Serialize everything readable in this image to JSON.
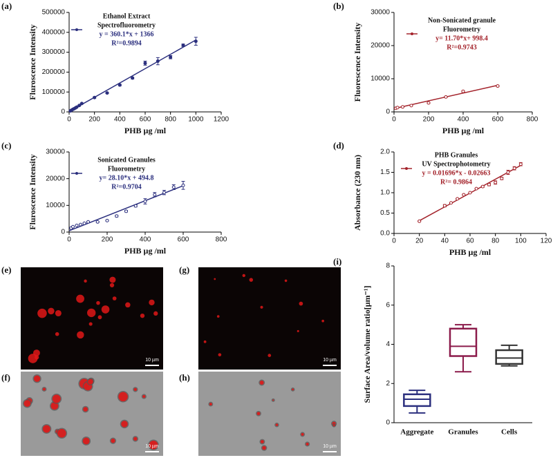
{
  "chart_data": [
    {
      "type": "scatter",
      "panel": "(a)",
      "xlabel": "PHB µg /ml",
      "ylabel": "Fluroscence Intensity",
      "xlim": [
        0,
        1200
      ],
      "xticks": [
        0,
        200,
        400,
        600,
        800,
        1000,
        1200
      ],
      "ylim": [
        0,
        500000
      ],
      "yticks": [
        0,
        100000,
        200000,
        300000,
        400000,
        500000
      ],
      "legend_lines": [
        "Ethanol Extract",
        "Spectrofluorometry",
        "y = 360.1*x + 1366",
        "R²=0.9894"
      ],
      "series": [
        {
          "color": "#2b2f7e",
          "marker": "filled",
          "x": [
            10,
            20,
            30,
            40,
            50,
            60,
            80,
            100,
            200,
            300,
            400,
            500,
            600,
            700,
            800,
            900,
            1000
          ],
          "values": [
            5000,
            9000,
            13000,
            16000,
            20000,
            24000,
            32000,
            42000,
            72000,
            95000,
            135000,
            170000,
            245000,
            255000,
            275000,
            335000,
            355000
          ],
          "errors": [
            1000,
            1000,
            1000,
            1000,
            1000,
            1000,
            2000,
            2000,
            3000,
            3000,
            4000,
            4000,
            10000,
            18000,
            8000,
            6000,
            20000
          ],
          "fit_x": [
            0,
            1000
          ],
          "fit_y": [
            1366,
            361466
          ]
        }
      ]
    },
    {
      "type": "scatter",
      "panel": "(b)",
      "xlabel": "PHB µg /ml",
      "ylabel": "Fluorescence Intensity",
      "xlim": [
        0,
        800
      ],
      "xticks": [
        0,
        200,
        400,
        600,
        800
      ],
      "ylim": [
        0,
        30000
      ],
      "yticks": [
        0,
        10000,
        20000,
        30000
      ],
      "legend_lines": [
        "Non-Sonicated granule",
        "Fluorometry",
        "y= 11.70*x+ 998.4",
        "R²=0.9743"
      ],
      "series": [
        {
          "color": "#a3222a",
          "marker": "open",
          "x": [
            10,
            20,
            50,
            100,
            200,
            300,
            400,
            600
          ],
          "values": [
            1100,
            1300,
            1500,
            1900,
            2700,
            4500,
            6200,
            7800
          ],
          "errors": [
            100,
            100,
            100,
            100,
            150,
            200,
            200,
            200
          ],
          "fit_x": [
            0,
            600
          ],
          "fit_y": [
            998,
            8018
          ]
        }
      ]
    },
    {
      "type": "scatter",
      "panel": "(c)",
      "xlabel": "PHB µg /ml",
      "ylabel": "Fluroscence Intensity",
      "xlim": [
        0,
        800
      ],
      "xticks": [
        0,
        200,
        400,
        600,
        800
      ],
      "ylim": [
        0,
        30000
      ],
      "yticks": [
        0,
        10000,
        20000,
        30000
      ],
      "legend_lines": [
        "Sonicated Granules",
        "Fluorometry",
        "y= 28.10*x + 494.8",
        "R²=0.9704"
      ],
      "series": [
        {
          "color": "#2b2f7e",
          "marker": "open",
          "x": [
            10,
            20,
            40,
            60,
            80,
            100,
            150,
            200,
            250,
            300,
            350,
            400,
            450,
            500,
            550,
            600
          ],
          "values": [
            1500,
            2000,
            2500,
            2800,
            3300,
            3800,
            3800,
            4300,
            6000,
            7800,
            9800,
            11500,
            14000,
            14800,
            16800,
            17500
          ],
          "errors": [
            100,
            100,
            100,
            100,
            100,
            200,
            200,
            200,
            300,
            300,
            400,
            1000,
            800,
            800,
            900,
            1500
          ],
          "fit_x": [
            0,
            600
          ],
          "fit_y": [
            495,
            17355
          ]
        }
      ]
    },
    {
      "type": "scatter",
      "panel": "(d)",
      "xlabel": "PHB µg /ml",
      "ylabel": "Absorbance (230 nm)",
      "xlim": [
        0,
        120
      ],
      "xticks": [
        0,
        20,
        40,
        60,
        80,
        100,
        120
      ],
      "ylim": [
        0,
        2.0
      ],
      "yticks": [
        {
          "value": 0,
          "label": "0.0"
        },
        0.5,
        {
          "value": 1.0,
          "label": "1.0"
        },
        1.5,
        {
          "value": 2.0,
          "label": "2.0"
        }
      ],
      "legend_lines": [
        "PHB Granules",
        "UV Spectrophotometry",
        "y = 0.01696*x - 0.02663",
        "R²= 0.9864"
      ],
      "series": [
        {
          "color": "#a3222a",
          "marker": "open",
          "x": [
            20,
            40,
            45,
            50,
            55,
            60,
            65,
            70,
            75,
            80,
            85,
            90,
            95,
            100
          ],
          "values": [
            0.3,
            0.68,
            0.75,
            0.85,
            0.95,
            1.0,
            1.1,
            1.15,
            1.2,
            1.25,
            1.35,
            1.5,
            1.6,
            1.7
          ],
          "errors": [
            0.01,
            0.03,
            0.01,
            0.01,
            0.01,
            0.01,
            0.01,
            0.02,
            0.03,
            0.04,
            0.03,
            0.05,
            0.04,
            0.04
          ],
          "fit_x": [
            20,
            100
          ],
          "fit_y": [
            0.313,
            1.67
          ]
        }
      ]
    },
    {
      "type": "box",
      "panel": "(i)",
      "ylabel": "Surface Area/volume ratio[µm⁻¹]",
      "categories": [
        "Aggregate",
        "Granules",
        "Cells"
      ],
      "ylim": [
        0,
        8
      ],
      "yticks": [
        0,
        2,
        4,
        6,
        8
      ],
      "boxes": [
        {
          "min": 0.5,
          "q1": 0.85,
          "median": 1.2,
          "q3": 1.45,
          "max": 1.65,
          "color": "#2b2f7e"
        },
        {
          "min": 2.6,
          "q1": 3.4,
          "median": 3.9,
          "q3": 4.8,
          "max": 5.0,
          "color": "#8b1a4a"
        },
        {
          "min": 2.9,
          "q1": 3.0,
          "median": 3.3,
          "q3": 3.7,
          "max": 3.95,
          "color": "#333333"
        }
      ]
    }
  ],
  "images": [
    {
      "label": "(e)",
      "scale_bar": "10 µm",
      "kind": "fluorescence"
    },
    {
      "label": "(f)",
      "scale_bar": "10 µm",
      "kind": "brightfield"
    },
    {
      "label": "(g)",
      "scale_bar": "10 µm",
      "kind": "fluorescence"
    },
    {
      "label": "(h)",
      "scale_bar": "10 µm",
      "kind": "brightfield"
    }
  ]
}
